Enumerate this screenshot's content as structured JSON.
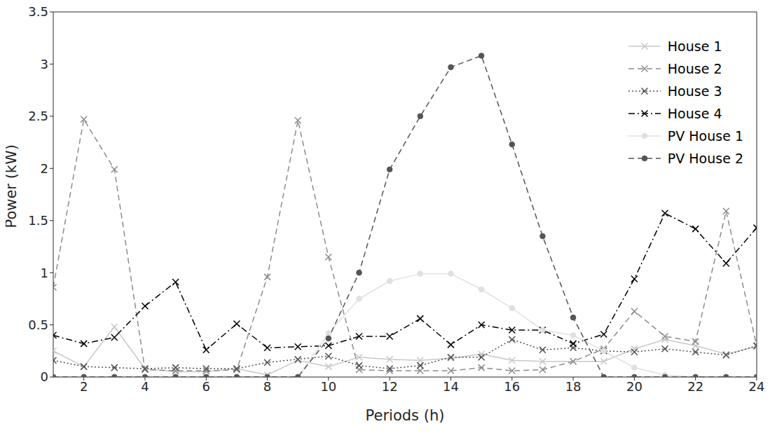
{
  "chart_data": {
    "type": "line",
    "x_label": "Periods (h)",
    "y_label": "Power (kW)",
    "x": [
      1,
      2,
      3,
      4,
      5,
      6,
      7,
      8,
      9,
      10,
      11,
      12,
      13,
      14,
      15,
      16,
      17,
      18,
      19,
      20,
      21,
      22,
      23,
      24
    ],
    "xlim": [
      1,
      24
    ],
    "xticks": [
      2,
      4,
      6,
      8,
      10,
      12,
      14,
      16,
      18,
      20,
      22,
      24
    ],
    "ylim": [
      0,
      3.5
    ],
    "yticks": [
      0,
      0.5,
      1,
      1.5,
      2,
      2.5,
      3,
      3.5
    ],
    "grid": false,
    "legend": "upper right",
    "series": [
      {
        "name": "House 1",
        "color": "#c8c8c8",
        "marker": "x",
        "line_style": "solid",
        "values": [
          0.25,
          0.1,
          0.48,
          0.08,
          0.05,
          0.05,
          0.08,
          0.02,
          0.16,
          0.1,
          0.19,
          0.17,
          0.16,
          0.18,
          0.22,
          0.16,
          0.15,
          0.15,
          0.15,
          0.27,
          0.36,
          0.3,
          0.22,
          0.29
        ]
      },
      {
        "name": "House 2",
        "color": "#8c8c8c",
        "marker": "x",
        "line_style": "dashed",
        "values": [
          0.86,
          2.47,
          1.99,
          0.07,
          0.06,
          0.06,
          0.07,
          0.96,
          2.46,
          1.15,
          0.07,
          0.06,
          0.06,
          0.06,
          0.09,
          0.06,
          0.07,
          0.15,
          0.27,
          0.63,
          0.39,
          0.34,
          1.59,
          0.3
        ]
      },
      {
        "name": "House 3",
        "color": "#505050",
        "marker": "x",
        "line_style": "dotted",
        "values": [
          0.16,
          0.1,
          0.09,
          0.08,
          0.09,
          0.08,
          0.08,
          0.14,
          0.17,
          0.2,
          0.11,
          0.08,
          0.11,
          0.19,
          0.19,
          0.36,
          0.26,
          0.28,
          0.25,
          0.24,
          0.27,
          0.24,
          0.21,
          0.3
        ]
      },
      {
        "name": "House 4",
        "color": "#000000",
        "marker": "x",
        "line_style": "dashdot",
        "values": [
          0.4,
          0.32,
          0.38,
          0.68,
          0.91,
          0.26,
          0.51,
          0.28,
          0.29,
          0.3,
          0.39,
          0.39,
          0.56,
          0.31,
          0.5,
          0.45,
          0.45,
          0.32,
          0.41,
          0.94,
          1.57,
          1.42,
          1.09,
          1.43
        ]
      },
      {
        "name": "PV House 1",
        "color": "#e0e0e0",
        "marker": "o",
        "line_style": "solid",
        "values": [
          0,
          0,
          0,
          0,
          0,
          0,
          0,
          0,
          0,
          0.42,
          0.75,
          0.92,
          0.99,
          0.99,
          0.84,
          0.66,
          0.45,
          0.4,
          0.25,
          0.09,
          0.02,
          0,
          0,
          0
        ]
      },
      {
        "name": "PV House 2",
        "color": "#555555",
        "marker": "o",
        "line_style": "dashed",
        "values": [
          0,
          0,
          0,
          0,
          0,
          0,
          0,
          0,
          0,
          0.37,
          1.0,
          1.99,
          2.5,
          2.97,
          3.08,
          2.23,
          1.35,
          0.57,
          0,
          0,
          0,
          0,
          0,
          0
        ]
      }
    ]
  }
}
